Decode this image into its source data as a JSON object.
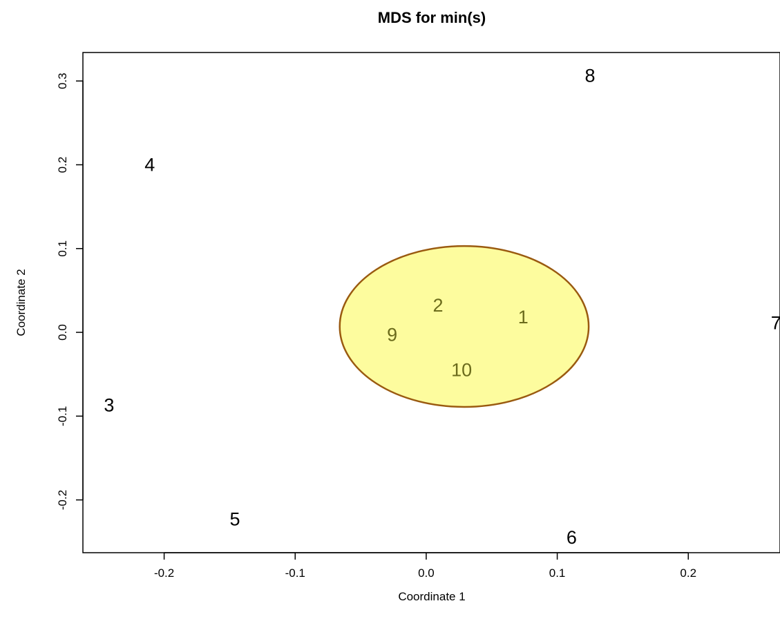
{
  "chart_data": {
    "type": "scatter",
    "title": "MDS for min(s)",
    "xlabel": "Coordinate 1",
    "ylabel": "Coordinate 2",
    "xlim": [
      -0.262,
      0.27
    ],
    "ylim": [
      -0.263,
      0.334
    ],
    "xticks": [
      -0.2,
      -0.1,
      0.0,
      0.1,
      0.2
    ],
    "xtick_labels": [
      "-0.2",
      "-0.1",
      "0.0",
      "0.1",
      "0.2"
    ],
    "yticks": [
      -0.2,
      -0.1,
      0.0,
      0.1,
      0.2,
      0.3
    ],
    "ytick_labels": [
      "-0.2",
      "-0.1",
      "0.0",
      "0.1",
      "0.2",
      "0.3"
    ],
    "grid": false,
    "points": [
      {
        "label": "1",
        "x": 0.074,
        "y": 0.019,
        "highlighted": true
      },
      {
        "label": "2",
        "x": 0.009,
        "y": 0.033,
        "highlighted": true
      },
      {
        "label": "3",
        "x": -0.242,
        "y": -0.086,
        "highlighted": false
      },
      {
        "label": "4",
        "x": -0.211,
        "y": 0.201,
        "highlighted": false
      },
      {
        "label": "5",
        "x": -0.146,
        "y": -0.222,
        "highlighted": false
      },
      {
        "label": "6",
        "x": 0.111,
        "y": -0.244,
        "highlighted": false
      },
      {
        "label": "7",
        "x": 0.267,
        "y": 0.012,
        "highlighted": false
      },
      {
        "label": "8",
        "x": 0.125,
        "y": 0.307,
        "highlighted": false
      },
      {
        "label": "9",
        "x": -0.026,
        "y": -0.002,
        "highlighted": false,
        "highlighted_region": true
      },
      {
        "label": "10",
        "x": 0.027,
        "y": -0.044,
        "highlighted": true
      }
    ],
    "highlight_region": {
      "shape": "ellipse",
      "center": [
        0.029,
        0.007
      ],
      "radius_x": 0.095,
      "radius_y": 0.096,
      "fill_color": "#fdfc9e",
      "stroke_color": "#9a5a10"
    }
  }
}
